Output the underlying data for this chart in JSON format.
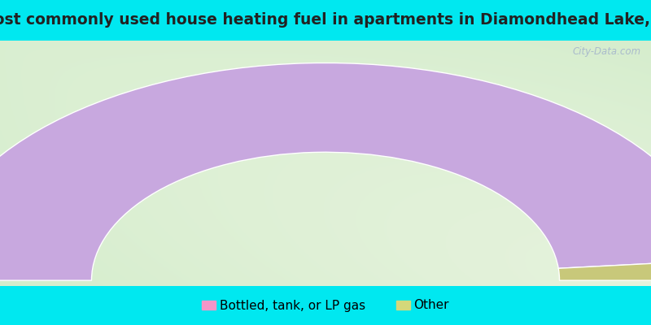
{
  "title": "Most commonly used house heating fuel in apartments in Diamondhead Lake, IA",
  "slices": [
    {
      "label": "Bottled, tank, or LP gas",
      "value": 97,
      "color": "#c8a8df",
      "legend_color": "#f496c8"
    },
    {
      "label": "Other",
      "value": 3,
      "color": "#c8c87a",
      "legend_color": "#d4d87a"
    }
  ],
  "title_color": "#222222",
  "title_fontsize": 13.5,
  "title_bg": "#00e8f0",
  "legend_bg": "#00e8f0",
  "watermark": "City-Data.com",
  "watermark_color": "#aabbcc"
}
